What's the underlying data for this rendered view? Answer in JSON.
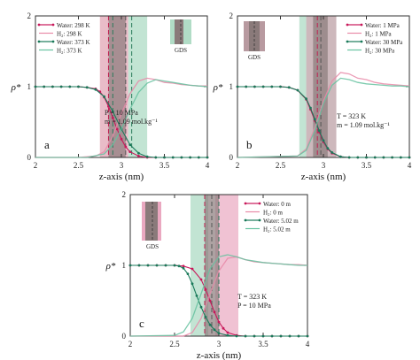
{
  "chart_data": [
    {
      "type": "line",
      "panel_label": "a",
      "xlabel": "z-axis (nm)",
      "ylabel": "ρ*",
      "xlim": [
        2,
        4
      ],
      "ylim": [
        0,
        2
      ],
      "xticks": [
        "2",
        "2.5",
        "3",
        "3.5",
        "4"
      ],
      "yticks": [
        "0",
        "1",
        "2"
      ],
      "annotations": [
        "P = 10 MPa",
        "m = 1.09 mol.kg⁻¹"
      ],
      "legend_position": "top-left",
      "gds_label": "GDS",
      "gds_bands": [
        {
          "x": [
            2.75,
            3.08
          ],
          "color": "#e0a0b0"
        },
        {
          "x": [
            3.08,
            3.3
          ],
          "color": "#a8d8c0"
        },
        {
          "x": [
            2.85,
            3.05
          ],
          "color": "#8a7a7a"
        }
      ],
      "dashed_lines": [
        {
          "x": 2.85,
          "color": "#c02050"
        },
        {
          "x": 2.9,
          "color": "#2a7a5a"
        },
        {
          "x": 3.05,
          "color": "#555555"
        },
        {
          "x": 3.12,
          "color": "#2a7a5a"
        }
      ],
      "series": [
        {
          "name": "Water: 298 K",
          "color": "#c8185a",
          "markers": true,
          "x": [
            2.0,
            2.1,
            2.2,
            2.3,
            2.4,
            2.5,
            2.6,
            2.7,
            2.75,
            2.8,
            2.85,
            2.9,
            2.95,
            3.0,
            3.05,
            3.1,
            3.2,
            3.3,
            3.4,
            3.5,
            3.6,
            3.7,
            3.8,
            3.9,
            4.0
          ],
          "y": [
            1.0,
            1.0,
            1.0,
            1.0,
            1.0,
            1.0,
            0.99,
            0.97,
            0.93,
            0.85,
            0.72,
            0.56,
            0.4,
            0.26,
            0.15,
            0.08,
            0.02,
            0.0,
            0.0,
            0.0,
            0.0,
            0.0,
            0.0,
            0.0,
            0.0
          ]
        },
        {
          "name": "H₂: 298 K",
          "color": "#e88aa8",
          "markers": false,
          "x": [
            2.0,
            2.5,
            2.7,
            2.8,
            2.9,
            3.0,
            3.1,
            3.2,
            3.3,
            3.4,
            3.5,
            3.6,
            3.7,
            3.8,
            3.9,
            4.0
          ],
          "y": [
            0.0,
            0.0,
            0.02,
            0.08,
            0.3,
            0.62,
            0.9,
            1.08,
            1.12,
            1.1,
            1.06,
            1.05,
            1.03,
            1.02,
            1.01,
            1.01
          ]
        },
        {
          "name": "Water: 373 K",
          "color": "#1a7a5a",
          "markers": true,
          "x": [
            2.0,
            2.1,
            2.2,
            2.3,
            2.4,
            2.5,
            2.6,
            2.7,
            2.8,
            2.9,
            3.0,
            3.1,
            3.2,
            3.3,
            3.4,
            3.5,
            3.6,
            3.7,
            3.8,
            3.9,
            4.0
          ],
          "y": [
            1.0,
            1.0,
            1.0,
            1.0,
            1.0,
            1.0,
            0.99,
            0.96,
            0.86,
            0.65,
            0.4,
            0.18,
            0.06,
            0.01,
            0.0,
            0.0,
            0.0,
            0.0,
            0.0,
            0.0,
            0.0
          ]
        },
        {
          "name": "H₂: 373 K",
          "color": "#66c2a0",
          "markers": false,
          "x": [
            2.0,
            2.6,
            2.8,
            2.9,
            3.0,
            3.1,
            3.2,
            3.3,
            3.4,
            3.5,
            3.6,
            3.7,
            3.8,
            3.9,
            4.0
          ],
          "y": [
            0.0,
            0.0,
            0.05,
            0.18,
            0.4,
            0.68,
            0.92,
            1.05,
            1.1,
            1.08,
            1.06,
            1.04,
            1.02,
            1.01,
            1.0
          ]
        }
      ]
    },
    {
      "type": "line",
      "panel_label": "b",
      "xlabel": "z-axis (nm)",
      "ylabel": "ρ*",
      "xlim": [
        2,
        4
      ],
      "ylim": [
        0,
        2
      ],
      "xticks": [
        "2",
        "2.5",
        "3",
        "3.5",
        "4"
      ],
      "yticks": [
        "0",
        "1",
        "2"
      ],
      "annotations": [
        "T = 323 K",
        "m = 1.09 mol.kg⁻¹"
      ],
      "legend_position": "top-right",
      "gds_label": "GDS",
      "gds_bands": [
        {
          "x": [
            2.72,
            2.8
          ],
          "color": "#a8d8c0"
        },
        {
          "x": [
            2.8,
            3.15
          ],
          "color": "#b89aa0"
        },
        {
          "x": [
            2.88,
            3.05
          ],
          "color": "#8a7a7a"
        }
      ],
      "dashed_lines": [
        {
          "x": 2.93,
          "color": "#c02050"
        },
        {
          "x": 2.97,
          "color": "#555555"
        }
      ],
      "series": [
        {
          "name": "Water: 1 MPa",
          "color": "#c8185a",
          "markers": true,
          "x": [
            2.0,
            2.1,
            2.2,
            2.3,
            2.4,
            2.5,
            2.6,
            2.7,
            2.8,
            2.85,
            2.9,
            2.95,
            3.0,
            3.05,
            3.1,
            3.2,
            3.3,
            3.4,
            3.5,
            3.6,
            3.7,
            3.8,
            3.9,
            4.0
          ],
          "y": [
            1.0,
            1.0,
            1.0,
            1.0,
            1.0,
            1.0,
            0.99,
            0.95,
            0.82,
            0.68,
            0.52,
            0.36,
            0.22,
            0.12,
            0.06,
            0.01,
            0.0,
            0.0,
            0.0,
            0.0,
            0.0,
            0.0,
            0.0,
            0.0
          ]
        },
        {
          "name": "H₂: 1 MPa",
          "color": "#e88aa8",
          "markers": false,
          "x": [
            2.0,
            2.7,
            2.8,
            2.9,
            3.0,
            3.1,
            3.2,
            3.3,
            3.4,
            3.5,
            3.6,
            3.7,
            3.8,
            3.9,
            4.0
          ],
          "y": [
            0.0,
            0.02,
            0.12,
            0.42,
            0.8,
            1.08,
            1.2,
            1.18,
            1.12,
            1.1,
            1.06,
            1.04,
            1.03,
            1.02,
            1.01
          ]
        },
        {
          "name": "Water: 30 MPa",
          "color": "#1a7a5a",
          "markers": true,
          "x": [
            2.0,
            2.1,
            2.2,
            2.3,
            2.4,
            2.5,
            2.6,
            2.7,
            2.8,
            2.85,
            2.9,
            2.95,
            3.0,
            3.05,
            3.1,
            3.2,
            3.3,
            3.4,
            3.5,
            3.6,
            3.7,
            3.8,
            3.9,
            4.0
          ],
          "y": [
            1.0,
            1.0,
            1.0,
            1.0,
            1.0,
            1.0,
            0.99,
            0.95,
            0.83,
            0.7,
            0.54,
            0.38,
            0.24,
            0.13,
            0.07,
            0.01,
            0.0,
            0.0,
            0.0,
            0.0,
            0.0,
            0.0,
            0.0,
            0.0
          ]
        },
        {
          "name": "H₂: 30 MPa",
          "color": "#66c2a0",
          "markers": false,
          "x": [
            2.0,
            2.7,
            2.8,
            2.9,
            3.0,
            3.1,
            3.2,
            3.3,
            3.4,
            3.5,
            3.6,
            3.7,
            3.8,
            3.9,
            4.0
          ],
          "y": [
            0.0,
            0.02,
            0.1,
            0.38,
            0.76,
            1.02,
            1.12,
            1.1,
            1.06,
            1.04,
            1.03,
            1.02,
            1.01,
            1.01,
            1.0
          ]
        }
      ]
    },
    {
      "type": "line",
      "panel_label": "c",
      "xlabel": "z-axis (nm)",
      "ylabel": "ρ*",
      "xlim": [
        2,
        4
      ],
      "ylim": [
        0,
        2
      ],
      "xticks": [
        "2",
        "2.5",
        "3",
        "3.5",
        "4"
      ],
      "yticks": [
        "0",
        "1",
        "2"
      ],
      "annotations": [
        "T = 323 K",
        "P = 10 MPa"
      ],
      "legend_position": "top-right",
      "gds_label": "GDS",
      "gds_bands": [
        {
          "x": [
            2.68,
            2.88
          ],
          "color": "#a8d8c0"
        },
        {
          "x": [
            2.96,
            3.22
          ],
          "color": "#eaa8c0"
        },
        {
          "x": [
            2.84,
            3.0
          ],
          "color": "#8a7a7a"
        }
      ],
      "dashed_lines": [
        {
          "x": 2.84,
          "color": "#c02050"
        },
        {
          "x": 2.92,
          "color": "#555555"
        },
        {
          "x": 3.0,
          "color": "#2a7a5a"
        }
      ],
      "series": [
        {
          "name": "Water: 0 m",
          "color": "#c8185a",
          "markers": true,
          "x": [
            2.0,
            2.1,
            2.2,
            2.3,
            2.4,
            2.5,
            2.6,
            2.7,
            2.8,
            2.85,
            2.9,
            2.95,
            3.0,
            3.05,
            3.1,
            3.2,
            3.3,
            3.4,
            3.5,
            3.6,
            3.7,
            3.8,
            3.9,
            4.0
          ],
          "y": [
            1.0,
            1.0,
            1.0,
            1.0,
            1.0,
            1.0,
            0.99,
            0.95,
            0.8,
            0.66,
            0.5,
            0.34,
            0.2,
            0.11,
            0.05,
            0.01,
            0.0,
            0.0,
            0.0,
            0.0,
            0.0,
            0.0,
            0.0,
            0.0
          ]
        },
        {
          "name": "H₂: 0 m",
          "color": "#e88aa8",
          "markers": false,
          "x": [
            2.0,
            2.6,
            2.7,
            2.8,
            2.9,
            3.0,
            3.1,
            3.2,
            3.3,
            3.4,
            3.5,
            3.6,
            3.7,
            3.8,
            3.9,
            4.0
          ],
          "y": [
            0.0,
            0.0,
            0.05,
            0.25,
            0.6,
            0.92,
            1.1,
            1.12,
            1.08,
            1.05,
            1.04,
            1.03,
            1.02,
            1.01,
            1.01,
            1.0
          ]
        },
        {
          "name": "Water: 5.02 m",
          "color": "#1a7a5a",
          "markers": true,
          "x": [
            2.0,
            2.1,
            2.2,
            2.3,
            2.4,
            2.5,
            2.55,
            2.6,
            2.65,
            2.7,
            2.75,
            2.8,
            2.85,
            2.9,
            2.95,
            3.0,
            3.1,
            3.2,
            3.3,
            3.4,
            3.5,
            3.6,
            3.7,
            3.8,
            3.9,
            4.0
          ],
          "y": [
            1.0,
            1.0,
            1.0,
            1.0,
            1.0,
            1.0,
            0.99,
            0.96,
            0.88,
            0.74,
            0.57,
            0.41,
            0.27,
            0.16,
            0.09,
            0.04,
            0.01,
            0.0,
            0.0,
            0.0,
            0.0,
            0.0,
            0.0,
            0.0,
            0.0,
            0.0
          ]
        },
        {
          "name": "H₂: 5.02 m",
          "color": "#66c2a0",
          "markers": false,
          "x": [
            2.0,
            2.5,
            2.6,
            2.7,
            2.8,
            2.9,
            3.0,
            3.1,
            3.2,
            3.3,
            3.4,
            3.5,
            3.6,
            3.7,
            3.8,
            3.9,
            4.0
          ],
          "y": [
            0.0,
            0.01,
            0.06,
            0.25,
            0.6,
            0.95,
            1.12,
            1.15,
            1.12,
            1.08,
            1.06,
            1.04,
            1.03,
            1.02,
            1.01,
            1.0,
            1.0
          ]
        }
      ]
    }
  ]
}
